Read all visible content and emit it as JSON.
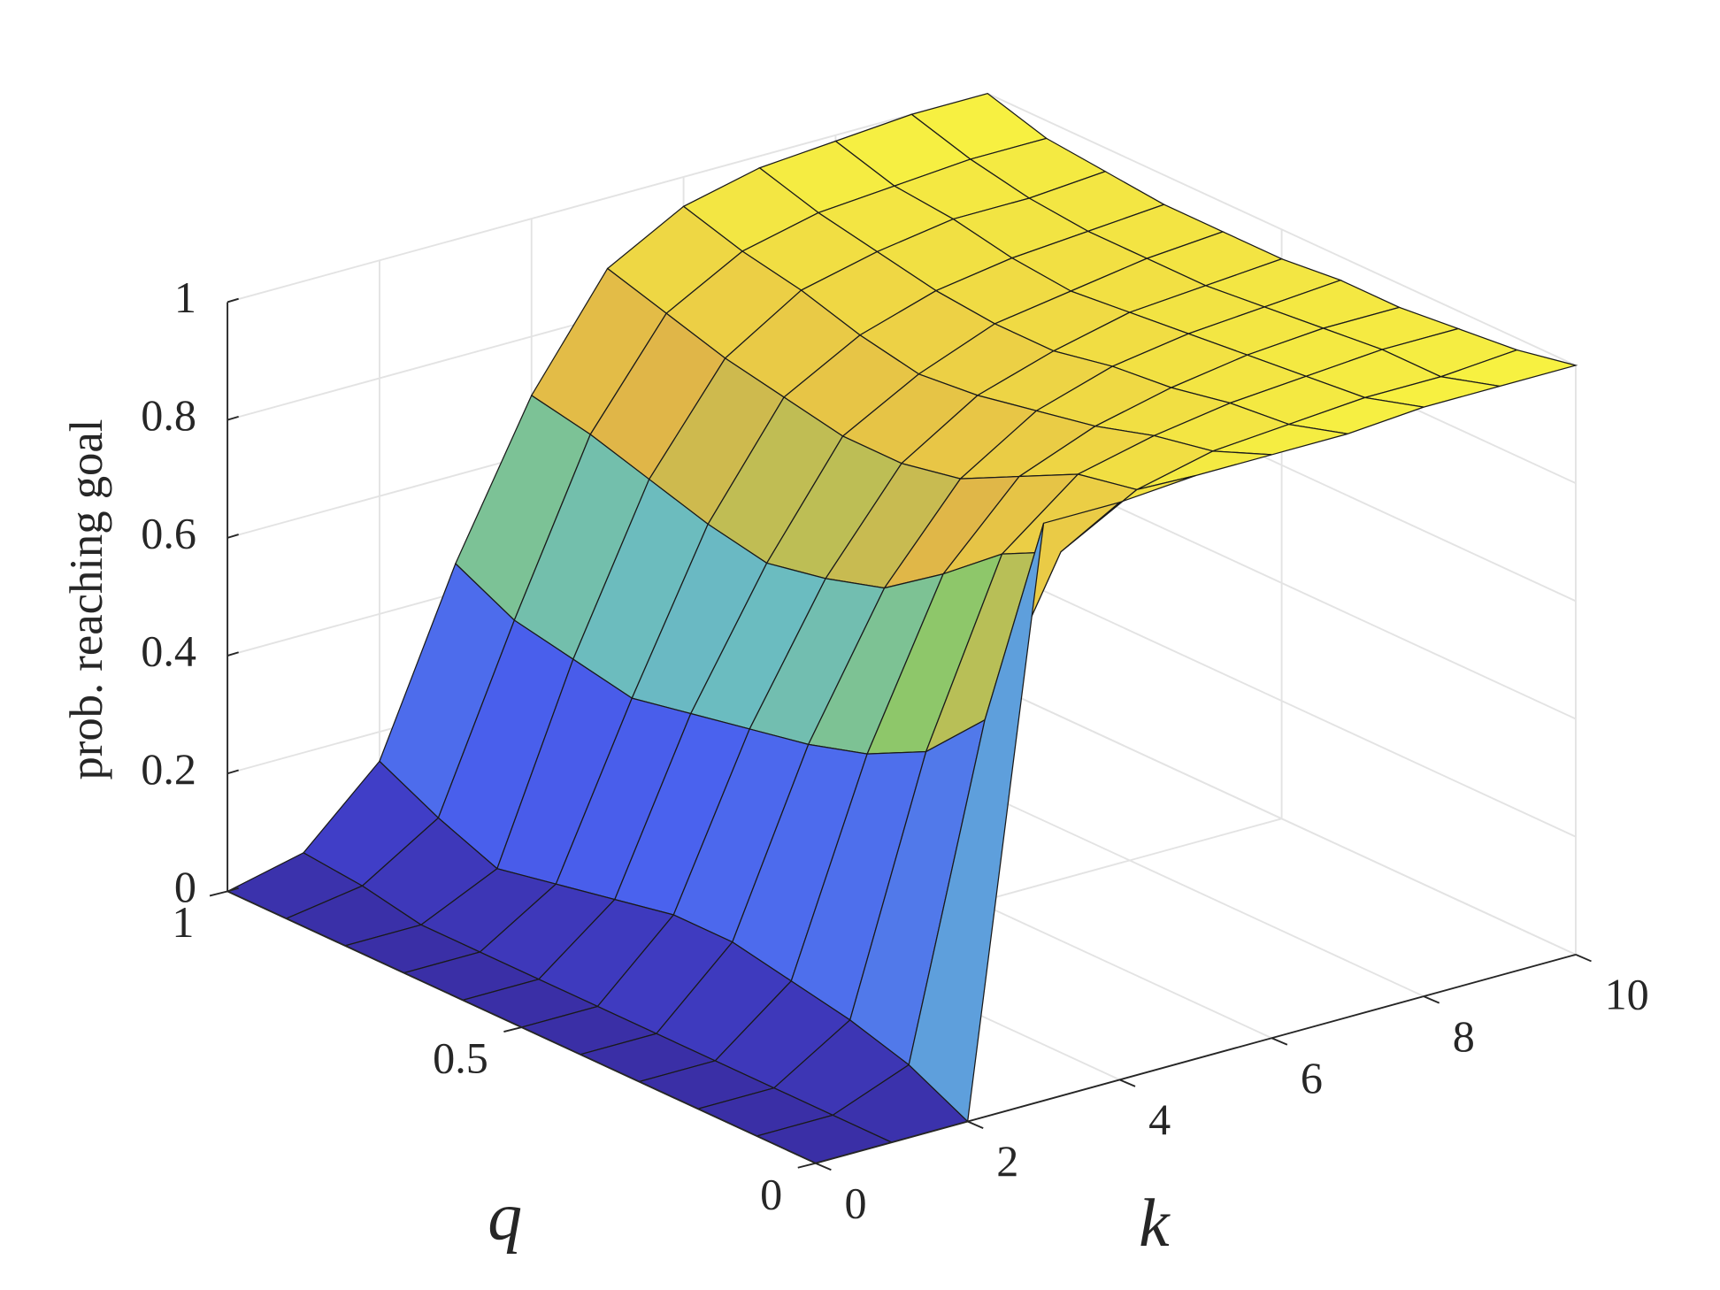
{
  "chart_data": {
    "type": "surface",
    "xlabel": "k",
    "ylabel": "q",
    "zlabel": "prob. reaching goal",
    "x": [
      0,
      1,
      2,
      3,
      4,
      5,
      6,
      7,
      8,
      9,
      10
    ],
    "y": [
      0,
      0.1,
      0.2,
      0.3,
      0.4,
      0.5,
      0.6,
      0.7,
      0.8,
      0.9,
      1
    ],
    "z": [
      [
        0,
        0,
        0,
        0.98,
        0.98,
        0.99,
        0.99,
        0.99,
        1,
        1,
        1
      ],
      [
        0,
        0,
        0.05,
        0.6,
        0.85,
        0.92,
        0.95,
        0.96,
        0.97,
        0.97,
        0.98
      ],
      [
        0,
        0,
        0.08,
        0.5,
        0.8,
        0.9,
        0.93,
        0.95,
        0.96,
        0.97,
        0.97
      ],
      [
        0,
        0,
        0.1,
        0.45,
        0.72,
        0.85,
        0.9,
        0.93,
        0.95,
        0.96,
        0.96
      ],
      [
        0,
        0,
        0.12,
        0.42,
        0.65,
        0.8,
        0.88,
        0.92,
        0.94,
        0.95,
        0.96
      ],
      [
        0,
        0,
        0.12,
        0.4,
        0.62,
        0.78,
        0.86,
        0.9,
        0.93,
        0.94,
        0.95
      ],
      [
        0,
        0,
        0.1,
        0.38,
        0.6,
        0.78,
        0.85,
        0.9,
        0.92,
        0.94,
        0.95
      ],
      [
        0,
        0,
        0.08,
        0.36,
        0.62,
        0.8,
        0.87,
        0.91,
        0.93,
        0.94,
        0.95
      ],
      [
        0,
        0,
        0.06,
        0.38,
        0.65,
        0.82,
        0.9,
        0.93,
        0.95,
        0.95,
        0.96
      ],
      [
        0,
        0.02,
        0.1,
        0.4,
        0.68,
        0.85,
        0.92,
        0.95,
        0.96,
        0.97,
        0.97
      ],
      [
        0,
        0.03,
        0.15,
        0.45,
        0.7,
        0.88,
        0.95,
        0.98,
        0.99,
        1,
        1
      ]
    ],
    "xlim": [
      0,
      10
    ],
    "ylim": [
      0,
      1
    ],
    "zlim": [
      0,
      1
    ],
    "xticks": [
      0,
      2,
      4,
      6,
      8,
      10
    ],
    "yticks": [
      0,
      0.5,
      1
    ],
    "zticks": [
      0,
      0.2,
      0.4,
      0.6,
      0.8,
      1
    ],
    "grid": true,
    "colormap": [
      "#3a2fa6",
      "#4448dd",
      "#4a62ee",
      "#5a95e6",
      "#6bbcc0",
      "#90c865",
      "#e0b648",
      "#eccf45",
      "#f8f541"
    ]
  }
}
